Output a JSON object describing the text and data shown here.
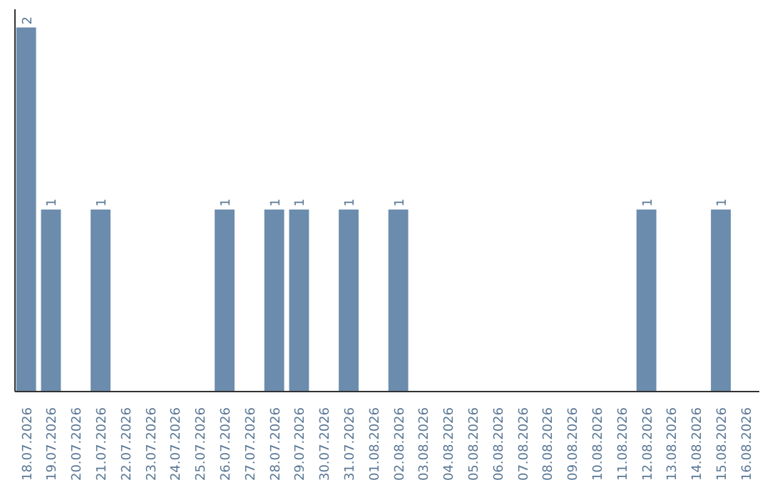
{
  "chart_data": {
    "type": "bar",
    "categories": [
      "18.07.2026",
      "19.07.2026",
      "20.07.2026",
      "21.07.2026",
      "22.07.2026",
      "23.07.2026",
      "24.07.2026",
      "25.07.2026",
      "26.07.2026",
      "27.07.2026",
      "28.07.2026",
      "29.07.2026",
      "30.07.2026",
      "31.07.2026",
      "01.08.2026",
      "02.08.2026",
      "03.08.2026",
      "04.08.2026",
      "05.08.2026",
      "06.08.2026",
      "07.08.2026",
      "08.08.2026",
      "09.08.2026",
      "10.08.2026",
      "11.08.2026",
      "12.08.2026",
      "13.08.2026",
      "14.08.2026",
      "15.08.2026",
      "16.08.2026"
    ],
    "values": [
      2,
      1,
      0,
      1,
      0,
      0,
      0,
      0,
      1,
      0,
      1,
      1,
      0,
      1,
      0,
      1,
      0,
      0,
      0,
      0,
      0,
      0,
      0,
      0,
      0,
      1,
      0,
      0,
      1,
      0
    ],
    "value_labels": [
      "2",
      "1",
      null,
      "1",
      null,
      null,
      null,
      null,
      "1",
      null,
      "1",
      "1",
      null,
      "1",
      null,
      "1",
      null,
      null,
      null,
      null,
      null,
      null,
      null,
      null,
      null,
      "1",
      null,
      null,
      "1",
      null
    ],
    "color": "#6b8cad",
    "grid": false,
    "tick_labels": "x"
  }
}
